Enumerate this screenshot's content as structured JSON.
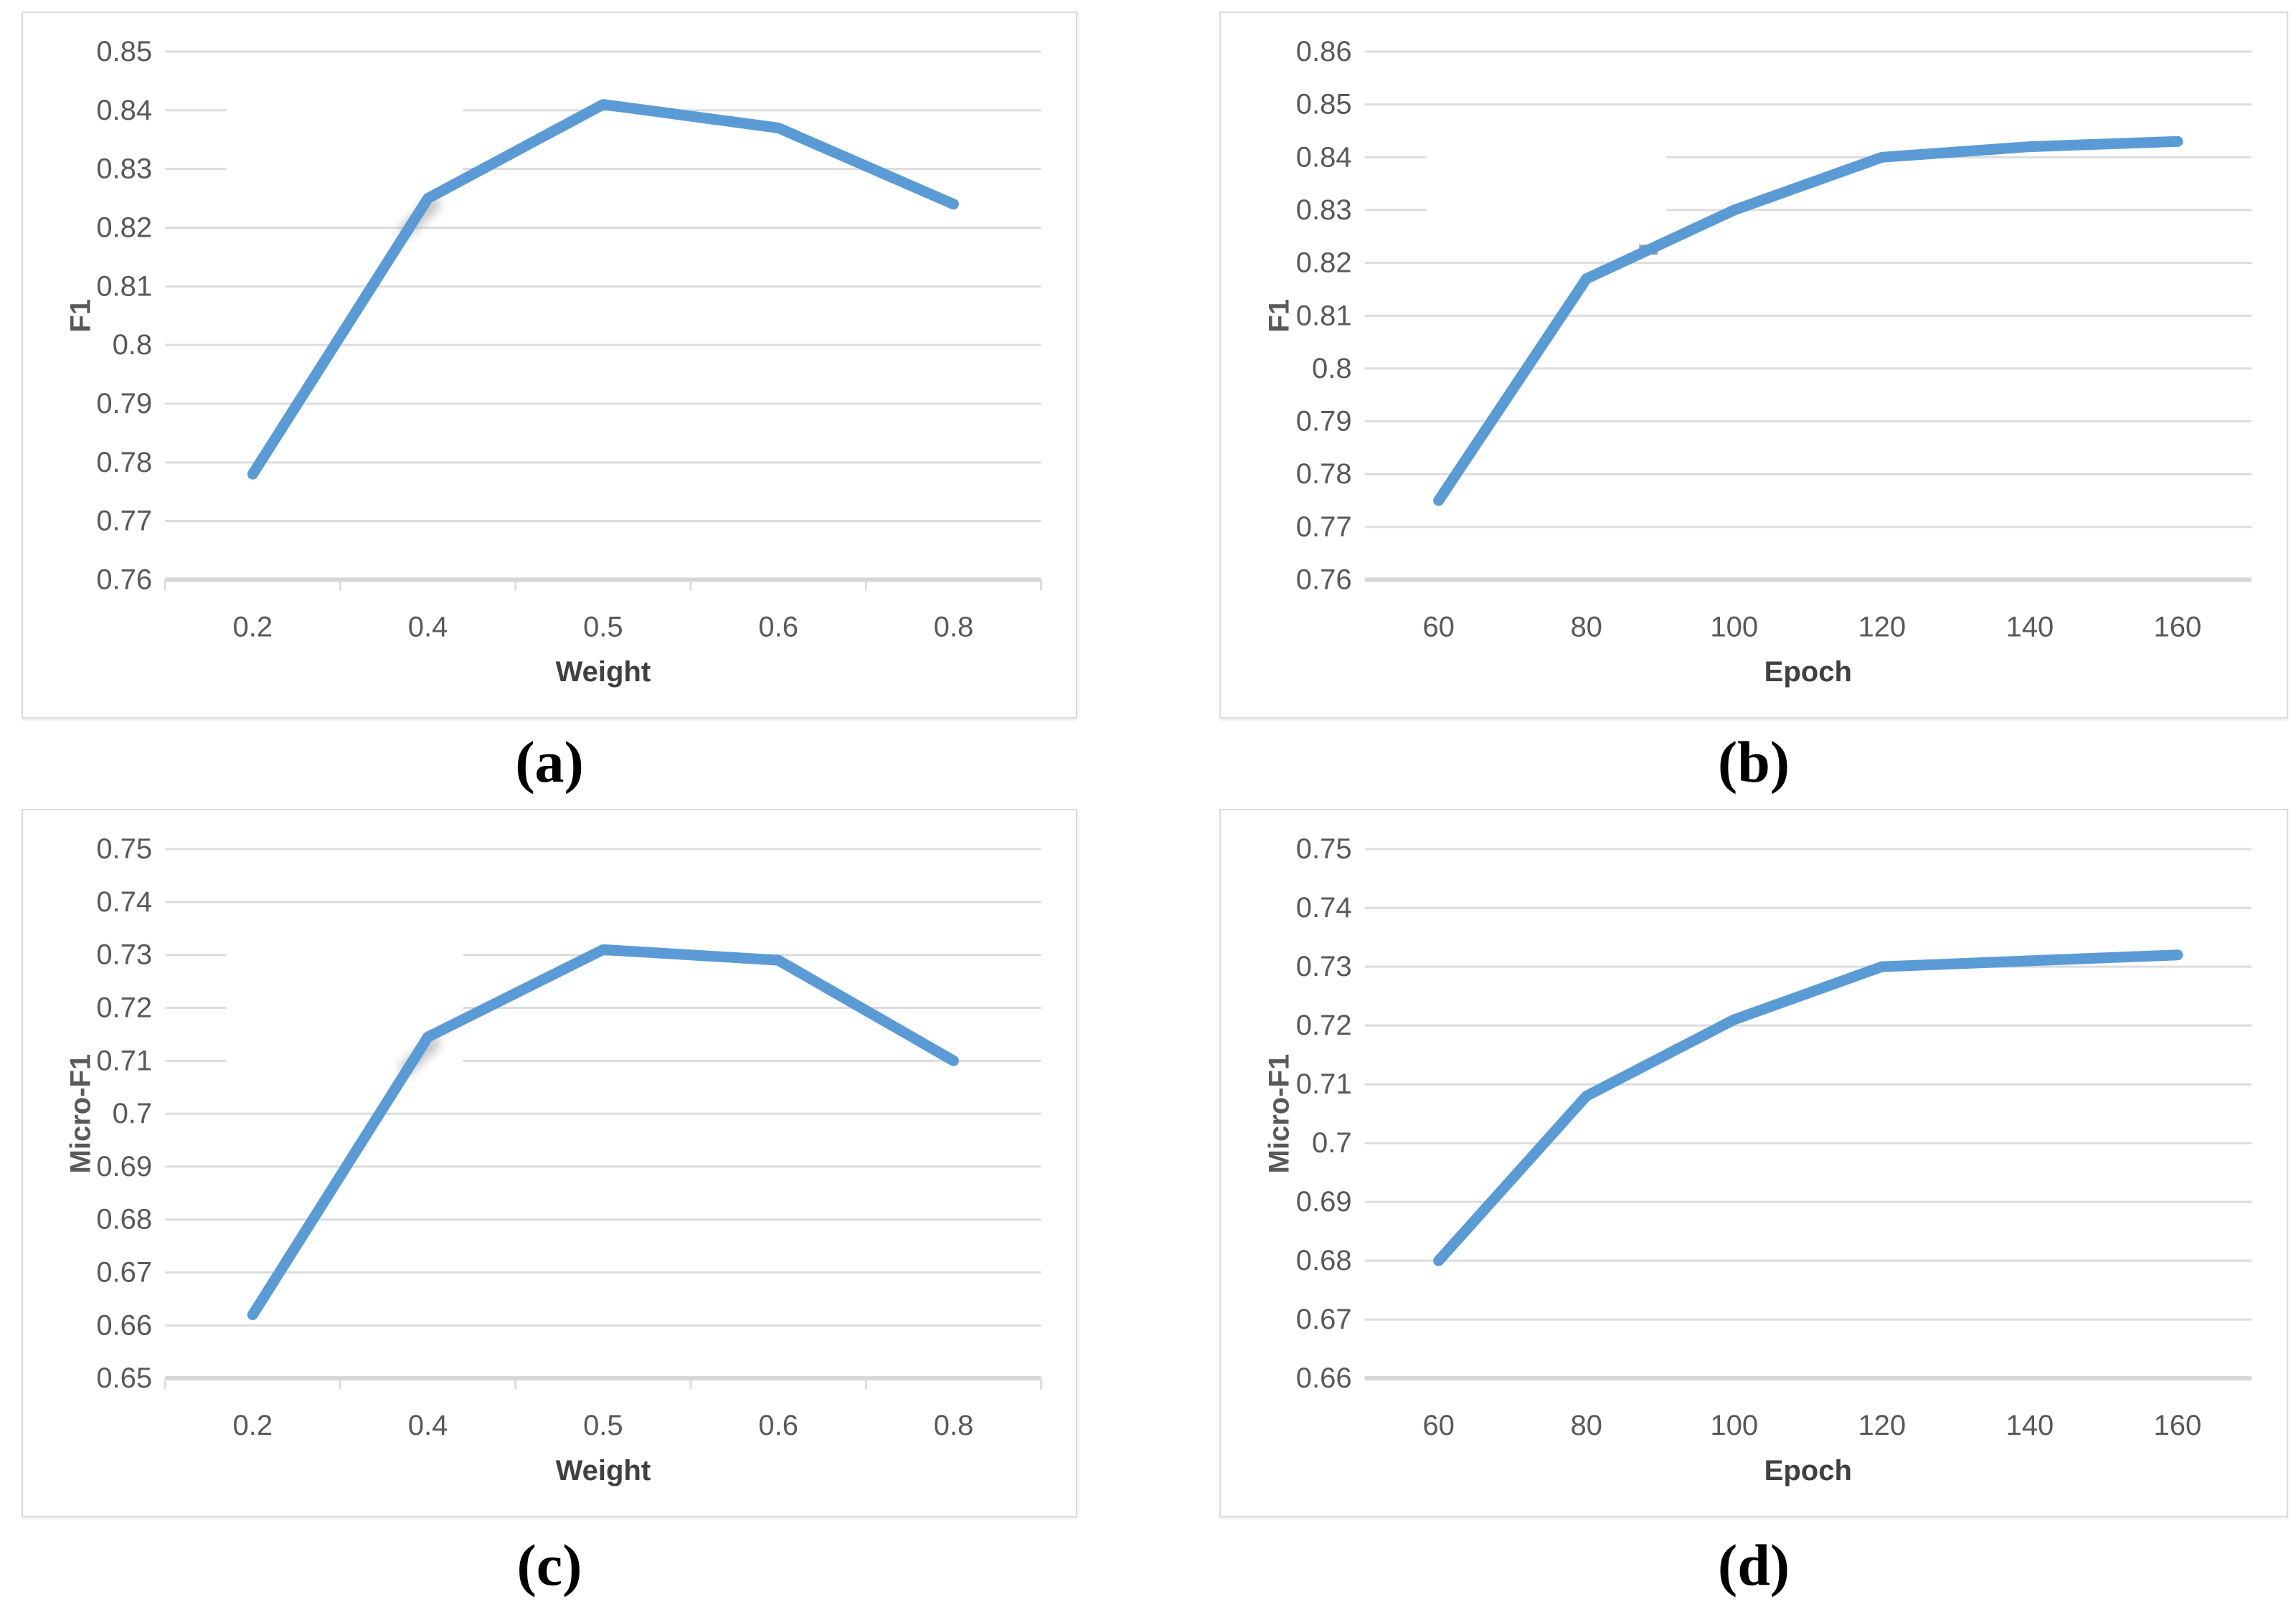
{
  "figure": {
    "captions": [
      "(a)",
      "(b)",
      "(c)",
      "(d)"
    ]
  },
  "colors": {
    "series_line": "#5B9BD5",
    "gridline": "#DCDCDC",
    "axis_line": "#D6D6D6",
    "tick_label": "#595959",
    "axis_title": "#404040",
    "artifact_gray": "#8C8C8C"
  },
  "chart_data": [
    {
      "type": "line",
      "panel": "a",
      "title": "",
      "xlabel": "Weight",
      "ylabel": "F1",
      "categories": [
        "0.2",
        "0.4",
        "0.5",
        "0.6",
        "0.8"
      ],
      "values": [
        0.778,
        0.825,
        0.841,
        0.837,
        0.824
      ],
      "ylim": [
        0.76,
        0.85
      ],
      "ytick_step": 0.01,
      "grid": true,
      "legend": "none",
      "broken_gridlines": [
        0.84,
        0.83
      ],
      "x_boundary_ticks": true,
      "artifacts": {
        "bend_shadow_at_index": 1
      }
    },
    {
      "type": "line",
      "panel": "b",
      "title": "",
      "xlabel": "Epoch",
      "ylabel": "F1",
      "categories": [
        "60",
        "80",
        "100",
        "120",
        "140",
        "160"
      ],
      "values": [
        0.775,
        0.817,
        0.83,
        0.84,
        0.842,
        0.843
      ],
      "ylim": [
        0.76,
        0.86
      ],
      "ytick_step": 0.01,
      "grid": true,
      "legend": "none",
      "broken_gridlines": [
        0.84,
        0.83
      ],
      "x_boundary_ticks": false,
      "artifacts": {
        "gray_dash": {
          "x_index": 1.42,
          "value": 0.8225
        }
      }
    },
    {
      "type": "line",
      "panel": "c",
      "title": "",
      "xlabel": "Weight",
      "ylabel": "Micro-F1",
      "categories": [
        "0.2",
        "0.4",
        "0.5",
        "0.6",
        "0.8"
      ],
      "values": [
        0.662,
        0.7145,
        0.731,
        0.729,
        0.71
      ],
      "ylim": [
        0.65,
        0.75
      ],
      "ytick_step": 0.01,
      "grid": true,
      "legend": "none",
      "broken_gridlines": [
        0.73,
        0.72,
        0.71
      ],
      "x_boundary_ticks": true,
      "artifacts": {
        "bend_shadow_at_index": 1
      }
    },
    {
      "type": "line",
      "panel": "d",
      "title": "",
      "xlabel": "Epoch",
      "ylabel": "Micro-F1",
      "categories": [
        "60",
        "80",
        "100",
        "120",
        "140",
        "160"
      ],
      "values": [
        0.68,
        0.708,
        0.721,
        0.73,
        0.731,
        0.732
      ],
      "ylim": [
        0.66,
        0.75
      ],
      "ytick_step": 0.01,
      "grid": true,
      "legend": "none",
      "broken_gridlines": [],
      "x_boundary_ticks": false,
      "artifacts": {}
    }
  ]
}
